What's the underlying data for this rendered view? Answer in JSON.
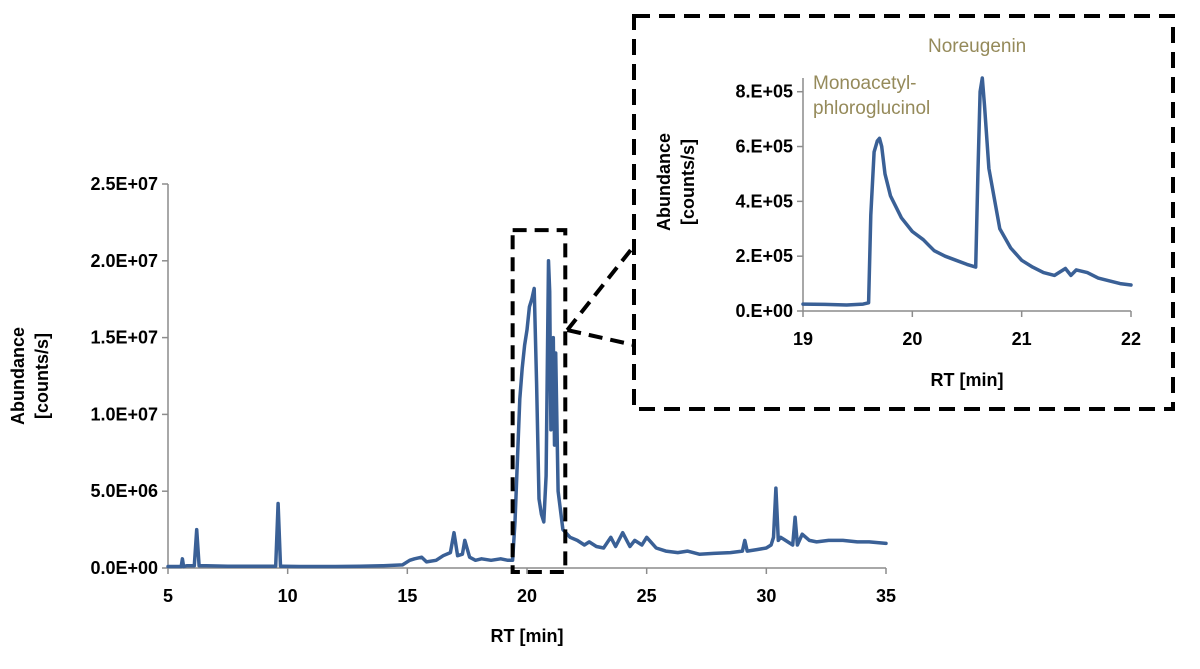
{
  "colors": {
    "series": "#3a6096",
    "axis": "#8c8c8c",
    "annotation": "#958a5a",
    "callout": "#000000"
  },
  "chart_data": [
    {
      "id": "main",
      "type": "line",
      "xlabel": "RT [min]",
      "ylabel_line1": "Abundance",
      "ylabel_line2": "[counts/s]",
      "xlim": [
        5,
        35
      ],
      "ylim": [
        0,
        25000000
      ],
      "x_ticks": [
        5,
        10,
        15,
        20,
        25,
        30,
        35
      ],
      "x_tick_labels": [
        "5",
        "10",
        "15",
        "20",
        "25",
        "30",
        "35"
      ],
      "y_ticks": [
        0,
        5000000,
        10000000,
        15000000,
        20000000,
        25000000
      ],
      "y_tick_labels": [
        "0.0E+00",
        "5.0E+06",
        "1.0E+07",
        "1.5E+07",
        "2.0E+07",
        "2.5E+07"
      ],
      "grid": false,
      "legend": "none",
      "zoom_region": {
        "x": [
          19.4,
          21.6
        ],
        "y": [
          0,
          22000000
        ]
      },
      "series": [
        {
          "x": [
            5.0,
            5.3,
            5.55,
            5.6,
            5.65,
            5.8,
            6.1,
            6.2,
            6.3,
            6.6,
            7.5,
            8.5,
            9.5,
            9.6,
            9.7,
            9.8,
            10.5,
            12.0,
            13.0,
            14.0,
            14.8,
            15.1,
            15.3,
            15.6,
            15.8,
            16.2,
            16.5,
            16.8,
            16.95,
            17.1,
            17.3,
            17.4,
            17.6,
            17.85,
            18.1,
            18.5,
            18.9,
            19.2,
            19.4,
            19.5,
            19.6,
            19.7,
            19.8,
            19.9,
            20.0,
            20.1,
            20.2,
            20.3,
            20.4,
            20.5,
            20.6,
            20.7,
            20.8,
            20.9,
            20.95,
            21.0,
            21.1,
            21.15,
            21.2,
            21.3,
            21.5,
            21.8,
            22.1,
            22.4,
            22.6,
            22.9,
            23.2,
            23.5,
            23.7,
            24.0,
            24.3,
            24.5,
            24.8,
            25.0,
            25.4,
            25.8,
            26.3,
            26.7,
            27.2,
            27.8,
            28.5,
            29.0,
            29.1,
            29.2,
            29.6,
            30.0,
            30.2,
            30.3,
            30.4,
            30.5,
            30.6,
            30.8,
            31.1,
            31.2,
            31.3,
            31.5,
            31.8,
            32.1,
            32.6,
            33.2,
            33.8,
            34.3,
            35.0
          ],
          "y": [
            100000,
            100000,
            100000,
            600000,
            100000,
            150000,
            150000,
            2500000,
            150000,
            150000,
            120000,
            120000,
            120000,
            4200000,
            120000,
            120000,
            100000,
            100000,
            110000,
            150000,
            200000,
            500000,
            600000,
            700000,
            400000,
            500000,
            800000,
            1000000,
            2300000,
            800000,
            900000,
            1800000,
            700000,
            500000,
            600000,
            500000,
            600000,
            500000,
            500000,
            3000000,
            7000000,
            11000000,
            13000000,
            14500000,
            15500000,
            17000000,
            17500000,
            18200000,
            12000000,
            4500000,
            3500000,
            3000000,
            6000000,
            20000000,
            18000000,
            9000000,
            15000000,
            8000000,
            14000000,
            5000000,
            2500000,
            2000000,
            1800000,
            1500000,
            1700000,
            1400000,
            1300000,
            2000000,
            1400000,
            2300000,
            1400000,
            1800000,
            1500000,
            2000000,
            1300000,
            1100000,
            1000000,
            1100000,
            900000,
            950000,
            1000000,
            1100000,
            1800000,
            1100000,
            1200000,
            1300000,
            1500000,
            2000000,
            5200000,
            1800000,
            2000000,
            1800000,
            1500000,
            3300000,
            1500000,
            2200000,
            1800000,
            1700000,
            1800000,
            1800000,
            1700000,
            1700000,
            1600000
          ]
        }
      ]
    },
    {
      "id": "inset",
      "type": "line",
      "xlabel": "RT [min]",
      "ylabel_line1": "Abundance",
      "ylabel_line2": "[counts/s]",
      "xlim": [
        19,
        22
      ],
      "ylim": [
        0,
        850000
      ],
      "x_ticks": [
        19,
        20,
        21,
        22
      ],
      "x_tick_labels": [
        "19",
        "20",
        "21",
        "22"
      ],
      "y_ticks": [
        0,
        200000,
        400000,
        600000,
        800000
      ],
      "y_tick_labels": [
        "0.E+00",
        "2.E+05",
        "4.E+05",
        "6.E+05",
        "8.E+05"
      ],
      "grid": false,
      "legend": "none",
      "annotations": [
        {
          "id": "monoacetyl",
          "lines": [
            "Monoacetyl-",
            "phloroglucinol"
          ],
          "x": 19.1,
          "y": 760000
        },
        {
          "id": "noreugenin",
          "lines": [
            "Noreugenin"
          ],
          "x": 20.3,
          "y": 890000
        }
      ],
      "series": [
        {
          "x": [
            19.0,
            19.2,
            19.4,
            19.55,
            19.6,
            19.62,
            19.65,
            19.68,
            19.7,
            19.72,
            19.75,
            19.8,
            19.9,
            20.0,
            20.1,
            20.15,
            20.2,
            20.3,
            20.4,
            20.5,
            20.58,
            20.6,
            20.62,
            20.64,
            20.66,
            20.7,
            20.8,
            20.9,
            21.0,
            21.1,
            21.2,
            21.3,
            21.4,
            21.45,
            21.5,
            21.6,
            21.7,
            21.8,
            21.9,
            22.0
          ],
          "y": [
            25000,
            24000,
            22000,
            25000,
            30000,
            350000,
            580000,
            620000,
            630000,
            600000,
            500000,
            420000,
            340000,
            290000,
            260000,
            240000,
            220000,
            200000,
            185000,
            170000,
            160000,
            500000,
            800000,
            850000,
            750000,
            520000,
            300000,
            230000,
            185000,
            160000,
            140000,
            130000,
            155000,
            130000,
            150000,
            140000,
            120000,
            110000,
            100000,
            95000
          ]
        }
      ]
    }
  ]
}
